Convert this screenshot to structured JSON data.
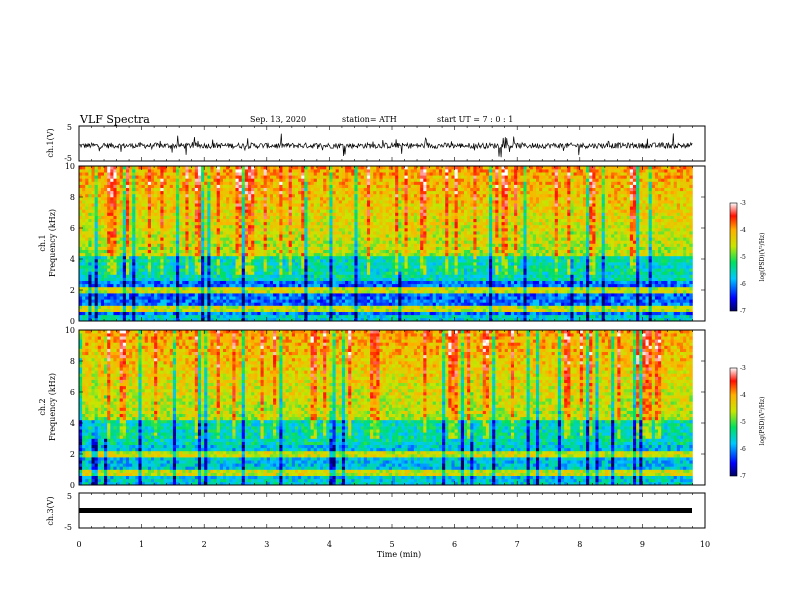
{
  "header": {
    "title": "VLF Spectra",
    "date": "Sep. 13, 2020",
    "station": "station= ATH",
    "start": "start UT = 7 : 0 : 1"
  },
  "chart_data": [
    {
      "type": "line",
      "ylabel": "ch.1(V)",
      "ylim": [
        -5,
        5
      ],
      "yticks": [
        "5",
        "-5"
      ],
      "xlim": [
        0,
        10
      ],
      "description_series": "noisy waveform around -0.5 V"
    },
    {
      "type": "heatmap",
      "ylabel_line1": "ch.1",
      "ylabel_line2": "Frequency (kHz)",
      "ylim": [
        0,
        10
      ],
      "yticks": [
        "0",
        "2",
        "4",
        "6",
        "8",
        "10"
      ],
      "xlim": [
        0,
        10
      ],
      "data_end_min": 9.8,
      "colorbar": {
        "ticks": [
          "-3",
          "-4",
          "-5",
          "-6",
          "-7"
        ],
        "label": "log(PSD)(V²/Hz)",
        "range": [
          -7,
          -3
        ]
      }
    },
    {
      "type": "heatmap",
      "ylabel_line1": "ch.2",
      "ylabel_line2": "Frequency (kHz)",
      "ylim": [
        0,
        10
      ],
      "yticks": [
        "0",
        "2",
        "4",
        "6",
        "8",
        "10"
      ],
      "xlim": [
        0,
        10
      ],
      "data_end_min": 9.8,
      "colorbar": {
        "ticks": [
          "-3",
          "-4",
          "-5",
          "-6",
          "-7"
        ],
        "label": "log(PSD)(V²/Hz)",
        "range": [
          -7,
          -3
        ]
      }
    },
    {
      "type": "line",
      "ylabel": "ch.3(V)",
      "ylim": [
        -5,
        5
      ],
      "yticks": [
        "5",
        "-5"
      ],
      "xlim": [
        0,
        10
      ],
      "constant_value": 0.3
    }
  ],
  "xaxis": {
    "label": "Time (min)",
    "ticks": [
      "0",
      "1",
      "2",
      "3",
      "4",
      "5",
      "6",
      "7",
      "8",
      "9",
      "10"
    ]
  }
}
